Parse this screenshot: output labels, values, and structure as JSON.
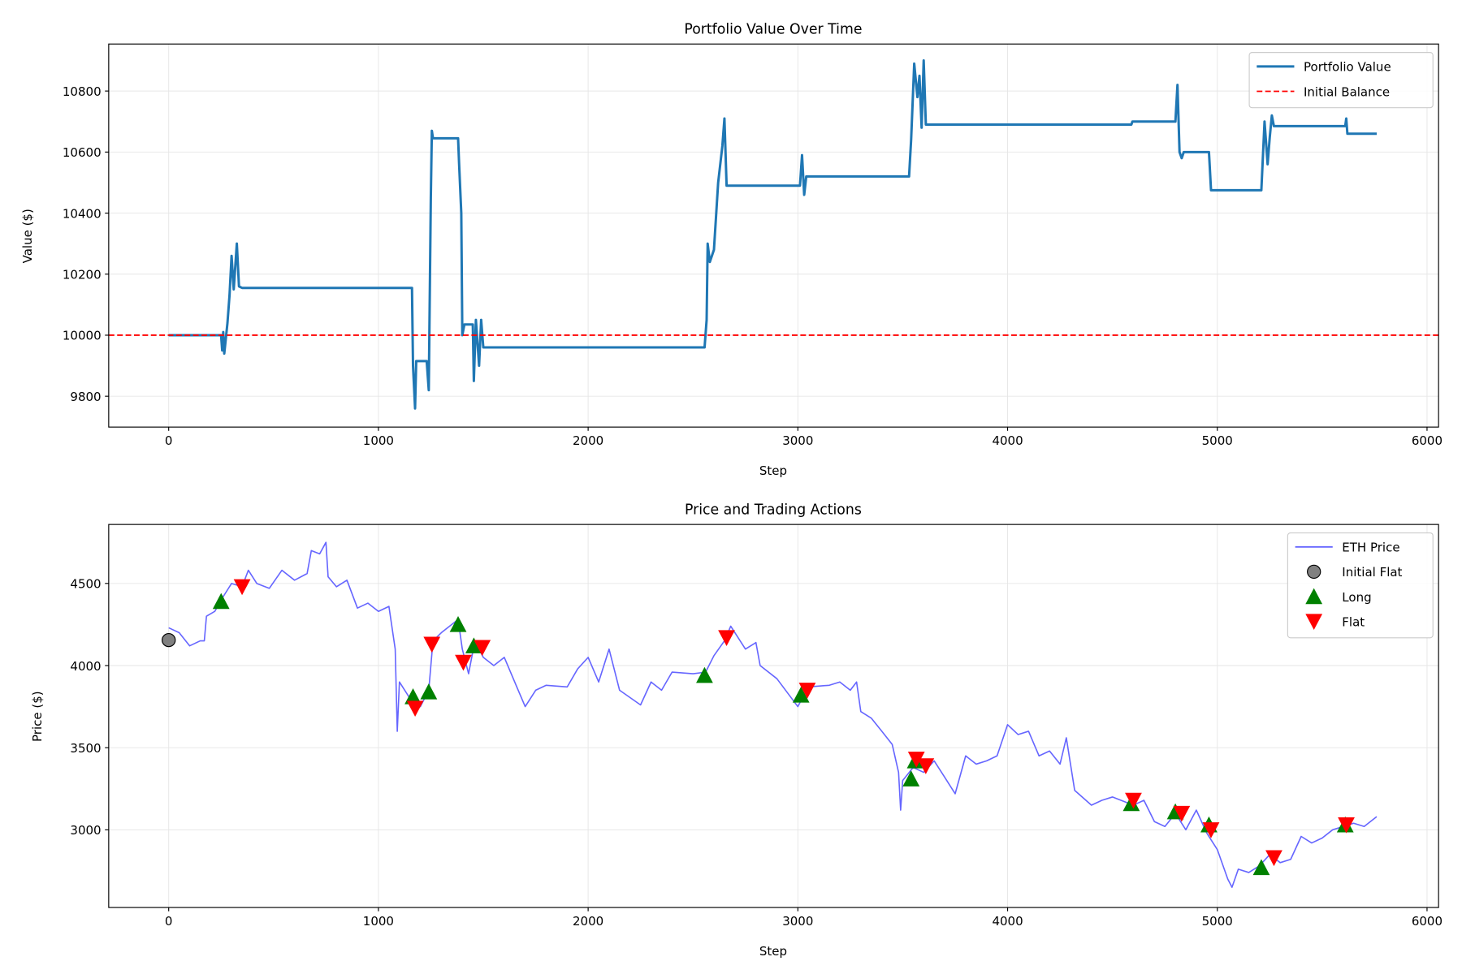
{
  "chart_data": [
    {
      "type": "line",
      "title": "Portfolio Value Over Time",
      "xlabel": "Step",
      "ylabel": "Value ($)",
      "xlim": [
        -286,
        6055
      ],
      "ylim": [
        9699,
        10954
      ],
      "xticks": [
        0,
        1000,
        2000,
        3000,
        4000,
        5000,
        6000
      ],
      "yticks": [
        9800,
        10000,
        10200,
        10400,
        10600,
        10800
      ],
      "grid": true,
      "legend": "top-right",
      "series": [
        {
          "name": "Portfolio Value",
          "color": "#1f77b4",
          "style": "solid",
          "x": [
            0,
            250,
            255,
            260,
            265,
            280,
            290,
            300,
            310,
            325,
            335,
            350,
            1160,
            1165,
            1175,
            1180,
            1230,
            1240,
            1250,
            1255,
            1260,
            1380,
            1385,
            1395,
            1400,
            1410,
            1450,
            1455,
            1465,
            1480,
            1490,
            1500,
            2555,
            2565,
            2570,
            2580,
            2600,
            2620,
            2640,
            2650,
            2660,
            3010,
            3020,
            3030,
            3040,
            3530,
            3540,
            3555,
            3570,
            3580,
            3590,
            3600,
            3610,
            4590,
            4595,
            4800,
            4810,
            4820,
            4830,
            4840,
            4960,
            4970,
            5210,
            5225,
            5240,
            5250,
            5260,
            5270,
            5610,
            5615,
            5620,
            5760
          ],
          "y": [
            10000,
            10000,
            9950,
            10010,
            9940,
            10040,
            10130,
            10260,
            10150,
            10300,
            10160,
            10155,
            10155,
            9900,
            9760,
            9915,
            9915,
            9820,
            10450,
            10670,
            10645,
            10645,
            10560,
            10400,
            10000,
            10035,
            10035,
            9850,
            10050,
            9900,
            10050,
            9960,
            9960,
            10050,
            10300,
            10240,
            10280,
            10500,
            10620,
            10710,
            10490,
            10490,
            10590,
            10460,
            10520,
            10520,
            10640,
            10890,
            10780,
            10850,
            10680,
            10900,
            10690,
            10690,
            10700,
            10700,
            10820,
            10600,
            10580,
            10600,
            10600,
            10475,
            10475,
            10700,
            10560,
            10650,
            10720,
            10685,
            10685,
            10710,
            10660,
            10660
          ]
        },
        {
          "name": "Initial Balance",
          "color": "#ff0000",
          "style": "dashed",
          "hline": 10000
        }
      ]
    },
    {
      "type": "line",
      "title": "Price and Trading Actions",
      "xlabel": "Step",
      "ylabel": "Price ($)",
      "xlim": [
        -286,
        6055
      ],
      "ylim": [
        2527,
        4859
      ],
      "xticks": [
        0,
        1000,
        2000,
        3000,
        4000,
        5000,
        6000
      ],
      "yticks": [
        3000,
        3500,
        4000,
        4500
      ],
      "grid": true,
      "legend": "top-right",
      "series": [
        {
          "name": "ETH Price",
          "color": "#6666ff",
          "style": "solid",
          "x": [
            0,
            50,
            100,
            150,
            170,
            180,
            220,
            260,
            300,
            350,
            380,
            420,
            480,
            540,
            600,
            660,
            680,
            720,
            750,
            760,
            800,
            850,
            900,
            950,
            1000,
            1050,
            1080,
            1090,
            1100,
            1150,
            1200,
            1240,
            1260,
            1300,
            1380,
            1400,
            1430,
            1460,
            1500,
            1550,
            1600,
            1650,
            1700,
            1750,
            1800,
            1900,
            1950,
            2000,
            2050,
            2100,
            2150,
            2250,
            2300,
            2350,
            2400,
            2500,
            2560,
            2600,
            2650,
            2680,
            2750,
            2800,
            2820,
            2900,
            3000,
            3050,
            3150,
            3200,
            3250,
            3280,
            3300,
            3350,
            3400,
            3450,
            3480,
            3490,
            3500,
            3550,
            3600,
            3650,
            3700,
            3750,
            3800,
            3850,
            3900,
            3950,
            4000,
            4050,
            4100,
            4150,
            4200,
            4250,
            4280,
            4320,
            4400,
            4450,
            4500,
            4600,
            4650,
            4700,
            4750,
            4800,
            4850,
            4900,
            4950,
            5000,
            5050,
            5070,
            5100,
            5150,
            5200,
            5250,
            5300,
            5350,
            5400,
            5450,
            5500,
            5550,
            5600,
            5650,
            5700,
            5760
          ],
          "y": [
            4230,
            4200,
            4120,
            4150,
            4150,
            4300,
            4330,
            4420,
            4500,
            4480,
            4580,
            4500,
            4470,
            4580,
            4520,
            4560,
            4700,
            4680,
            4750,
            4540,
            4480,
            4520,
            4350,
            4380,
            4330,
            4360,
            4100,
            3600,
            3900,
            3800,
            3750,
            3850,
            4150,
            4200,
            4280,
            4100,
            3950,
            4150,
            4050,
            4000,
            4050,
            3900,
            3750,
            3850,
            3880,
            3870,
            3980,
            4050,
            3900,
            4100,
            3850,
            3760,
            3900,
            3850,
            3960,
            3950,
            3960,
            4060,
            4150,
            4240,
            4100,
            4140,
            4000,
            3920,
            3750,
            3870,
            3880,
            3900,
            3850,
            3900,
            3720,
            3680,
            3600,
            3520,
            3350,
            3120,
            3300,
            3380,
            3350,
            3420,
            3320,
            3220,
            3450,
            3400,
            3420,
            3450,
            3640,
            3580,
            3600,
            3450,
            3480,
            3400,
            3560,
            3240,
            3150,
            3180,
            3200,
            3150,
            3180,
            3050,
            3020,
            3100,
            3000,
            3120,
            2980,
            2880,
            2700,
            2650,
            2760,
            2740,
            2780,
            2850,
            2800,
            2820,
            2960,
            2920,
            2950,
            3000,
            3020,
            3040,
            3020,
            3080
          ]
        },
        {
          "name": "Initial Flat",
          "marker": "circle",
          "color": "#808080",
          "points": [
            [
              0,
              4155
            ]
          ]
        },
        {
          "name": "Long",
          "marker": "triangle-up",
          "color": "#008000",
          "points": [
            [
              250,
              4390
            ],
            [
              1165,
              3810
            ],
            [
              1240,
              3840
            ],
            [
              1380,
              4250
            ],
            [
              1455,
              4120
            ],
            [
              2555,
              3940
            ],
            [
              3015,
              3820
            ],
            [
              3540,
              3310
            ],
            [
              3560,
              3420
            ],
            [
              4590,
              3160
            ],
            [
              4800,
              3110
            ],
            [
              4960,
              3030
            ],
            [
              5210,
              2770
            ],
            [
              5610,
              3030
            ]
          ]
        },
        {
          "name": "Flat",
          "marker": "triangle-down",
          "color": "#ff0000",
          "points": [
            [
              350,
              4480
            ],
            [
              1175,
              3740
            ],
            [
              1255,
              4130
            ],
            [
              1405,
              4020
            ],
            [
              1495,
              4110
            ],
            [
              2660,
              4170
            ],
            [
              3045,
              3850
            ],
            [
              3565,
              3430
            ],
            [
              3610,
              3390
            ],
            [
              4600,
              3180
            ],
            [
              4830,
              3100
            ],
            [
              4970,
              3000
            ],
            [
              5270,
              2830
            ],
            [
              5615,
              3030
            ]
          ]
        }
      ]
    }
  ]
}
